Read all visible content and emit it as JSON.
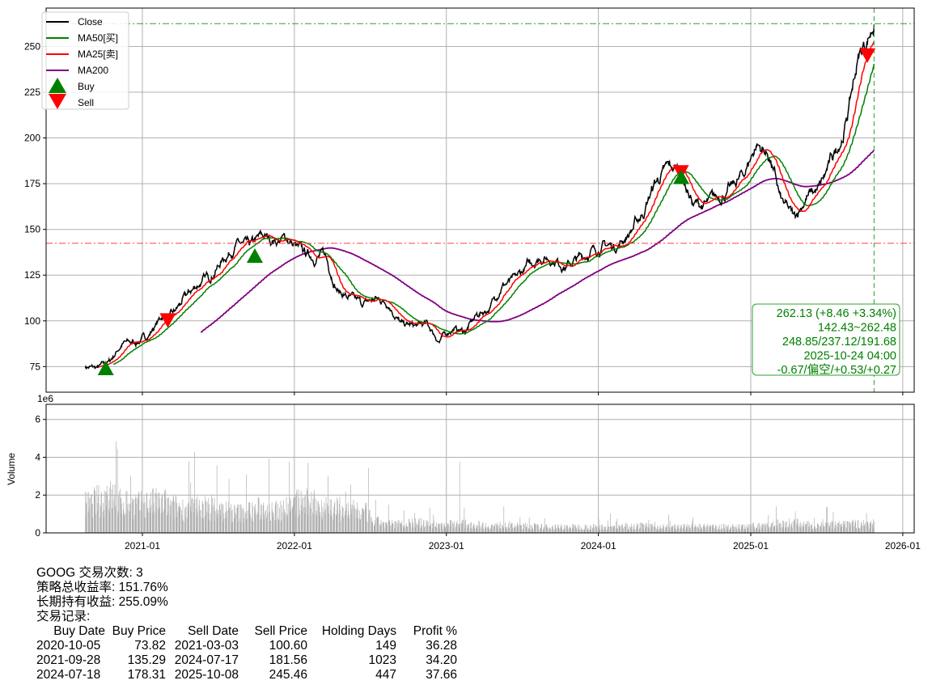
{
  "chart_data": {
    "type": "line",
    "ticker": "GOOG",
    "price_panel": {
      "ylim": [
        61,
        271
      ],
      "yticks": [
        75,
        100,
        125,
        150,
        175,
        200,
        225,
        250
      ],
      "grid": true,
      "legend": {
        "placement": "top-left",
        "entries": [
          "Close",
          "MA50[买]",
          "MA25[卖]",
          "MA200",
          "Buy",
          "Sell"
        ]
      },
      "series_colors": {
        "close": "#000000",
        "ma50": "#008000",
        "ma25": "#ff0000",
        "ma200": "#800080"
      },
      "monthly_close": {
        "dates": [
          "2020-08-17",
          "2020-09-15",
          "2020-10-15",
          "2020-11-15",
          "2020-12-15",
          "2021-01-15",
          "2021-02-15",
          "2021-03-15",
          "2021-04-15",
          "2021-05-15",
          "2021-06-15",
          "2021-07-15",
          "2021-08-15",
          "2021-09-15",
          "2021-10-15",
          "2021-11-15",
          "2021-12-15",
          "2022-01-15",
          "2022-02-15",
          "2022-03-15",
          "2022-04-15",
          "2022-05-15",
          "2022-06-15",
          "2022-07-15",
          "2022-08-15",
          "2022-09-15",
          "2022-10-15",
          "2022-11-15",
          "2022-12-15",
          "2023-01-15",
          "2023-02-15",
          "2023-03-15",
          "2023-04-15",
          "2023-05-15",
          "2023-06-15",
          "2023-07-15",
          "2023-08-15",
          "2023-09-15",
          "2023-10-15",
          "2023-11-15",
          "2023-12-15",
          "2024-01-15",
          "2024-02-15",
          "2024-03-15",
          "2024-04-15",
          "2024-05-15",
          "2024-06-15",
          "2024-07-15",
          "2024-08-15",
          "2024-09-15",
          "2024-10-15",
          "2024-11-15",
          "2024-12-15",
          "2025-01-15",
          "2025-02-15",
          "2025-03-15",
          "2025-04-15",
          "2025-05-15",
          "2025-06-15",
          "2025-07-15",
          "2025-08-15",
          "2025-09-15",
          "2025-10-24"
        ],
        "values": [
          75,
          74,
          78,
          88,
          88,
          92,
          102,
          103,
          113,
          120,
          125,
          134,
          142,
          140,
          146,
          144,
          145,
          138,
          135,
          136,
          117,
          112,
          109,
          112,
          110,
          98,
          97,
          98,
          89,
          96,
          94,
          103,
          107,
          120,
          122,
          130,
          135,
          134,
          130,
          134,
          138,
          141,
          141,
          148,
          158,
          175,
          183,
          183,
          164,
          163,
          168,
          172,
          180,
          197,
          190,
          165,
          156,
          168,
          172,
          188,
          205,
          243,
          262.13
        ]
      },
      "hlines": {
        "high": 262.48,
        "low": 142.43
      },
      "trades_markers": [
        {
          "type": "Buy",
          "date": "2020-10-05",
          "price": 73.82
        },
        {
          "type": "Sell",
          "date": "2021-03-03",
          "price": 100.6
        },
        {
          "type": "Buy",
          "date": "2021-09-28",
          "price": 135.29
        },
        {
          "type": "Sell",
          "date": "2024-07-17",
          "price": 181.56
        },
        {
          "type": "Buy",
          "date": "2024-07-18",
          "price": 178.31
        },
        {
          "type": "Sell",
          "date": "2025-10-08",
          "price": 245.46
        }
      ],
      "info_box": [
        "262.13 (+8.46 +3.34%)",
        "142.43~262.48",
        "248.85/237.12/191.68",
        "2025-10-24 04:00",
        "-0.67/偏空/+0.53/+0.27"
      ]
    },
    "volume_panel": {
      "ylabel": "Volume",
      "scale_label": "1e6",
      "ylim": [
        0,
        6.8
      ],
      "yticks": [
        0,
        2,
        4,
        6
      ],
      "color": "#b0b0b0",
      "monthly_avg_volume_millions": [
        1.4,
        1.6,
        1.8,
        1.5,
        1.4,
        1.5,
        1.5,
        1.3,
        1.2,
        1.3,
        1.2,
        1.1,
        1.0,
        1.1,
        1.2,
        1.1,
        1.3,
        1.5,
        1.4,
        1.3,
        1.2,
        1.1,
        1.0,
        0.55,
        0.45,
        0.45,
        0.5,
        0.45,
        0.4,
        0.45,
        0.45,
        0.4,
        0.35,
        0.4,
        0.35,
        0.35,
        0.3,
        0.3,
        0.3,
        0.3,
        0.3,
        0.3,
        0.3,
        0.35,
        0.35,
        0.3,
        0.3,
        0.3,
        0.3,
        0.3,
        0.3,
        0.3,
        0.3,
        0.35,
        0.4,
        0.45,
        0.5,
        0.4,
        0.4,
        0.4,
        0.4,
        0.45,
        0.45
      ],
      "peaks_millions": [
        {
          "date": "2020-10-30",
          "value": 4.85
        },
        {
          "date": "2021-11-01",
          "value": 3.9
        },
        {
          "date": "2022-02-03",
          "value": 3.7
        },
        {
          "date": "2023-02-02",
          "value": 3.75
        }
      ]
    },
    "xticks": [
      "2021-01",
      "2022-01",
      "2023-01",
      "2024-01",
      "2025-01",
      "2026-01"
    ]
  },
  "summary": {
    "line1": "GOOG 交易次数: 3",
    "line2": "策略总收益率: 151.76%",
    "line3": "长期持有收益: 255.09%",
    "line4": "交易记录:",
    "headers": [
      "Buy Date",
      "Buy Price",
      "Sell Date",
      "Sell Price",
      "Holding Days",
      "Profit %"
    ],
    "rows": [
      [
        "2020-10-05",
        "73.82",
        "2021-03-03",
        "100.60",
        "149",
        "36.28"
      ],
      [
        "2021-09-28",
        "135.29",
        "2024-07-17",
        "181.56",
        "1023",
        "34.20"
      ],
      [
        "2024-07-18",
        "178.31",
        "2025-10-08",
        "245.46",
        "447",
        "37.66"
      ]
    ]
  }
}
